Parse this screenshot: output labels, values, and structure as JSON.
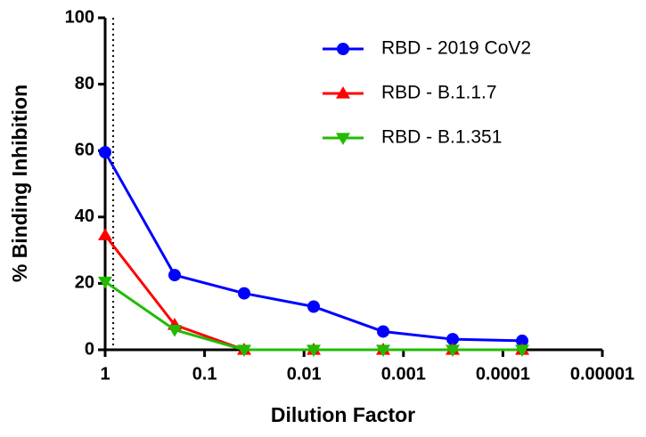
{
  "chart_data": {
    "type": "line",
    "x_label": "Dilution Factor",
    "y_label": "% Binding Inhibition",
    "x": [
      1,
      0.2,
      0.04,
      0.008,
      0.0016,
      0.00032,
      6.4e-05
    ],
    "series": [
      {
        "name": "RBD - 2019 CoV2",
        "color": "#0000ff",
        "marker": "circle",
        "values": [
          59.5,
          22.5,
          17,
          13,
          5.5,
          3.2,
          2.7
        ]
      },
      {
        "name": "RBD - B.1.1.7",
        "color": "#ff0000",
        "marker": "triangle-up",
        "values": [
          34.5,
          7.5,
          0,
          0,
          0,
          0,
          0
        ]
      },
      {
        "name": "RBD - B.1.351",
        "color": "#22bb00",
        "marker": "triangle-down",
        "values": [
          20.5,
          6,
          0,
          0,
          0,
          0,
          0
        ]
      }
    ],
    "xscale": "log",
    "xlim": [
      1,
      1e-05
    ],
    "xticks": [
      1,
      0.1,
      0.01,
      0.001,
      0.0001,
      1e-05
    ],
    "ylim": [
      0,
      100
    ],
    "yticks": [
      0,
      20,
      40,
      60,
      80,
      100
    ],
    "reference_line_x": 0.83,
    "grid": false,
    "legend": "upper right"
  }
}
